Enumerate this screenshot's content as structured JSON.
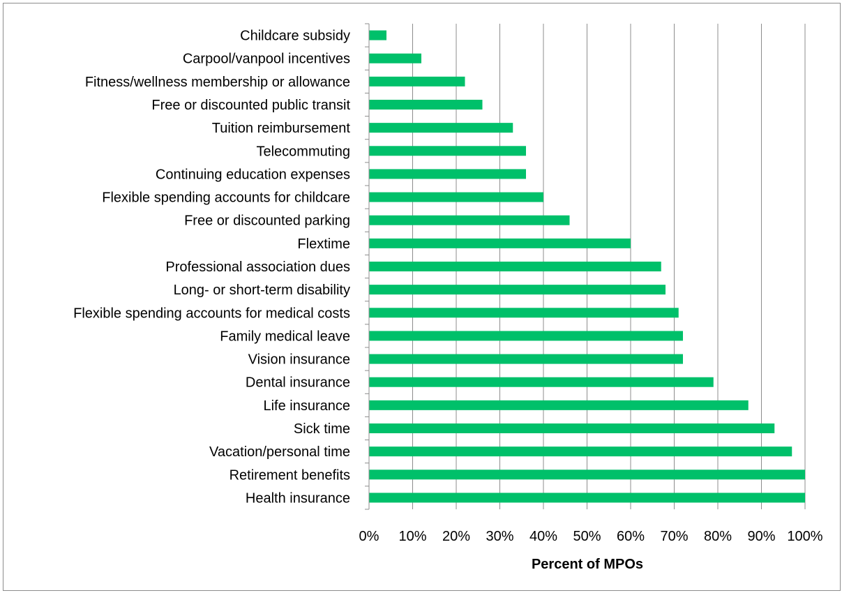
{
  "chart_data": {
    "type": "bar",
    "orientation": "horizontal",
    "title": "",
    "xlabel": "Percent of MPOs",
    "ylabel": "",
    "xlim": [
      0,
      100
    ],
    "x_ticks": [
      "0%",
      "10%",
      "20%",
      "30%",
      "40%",
      "50%",
      "60%",
      "70%",
      "80%",
      "90%",
      "100%"
    ],
    "grid": "vertical",
    "legend": "none",
    "bar_color": "#00c06a",
    "categories": [
      "Childcare subsidy",
      "Carpool/vanpool incentives",
      "Fitness/wellness membership or allowance",
      "Free or discounted public transit",
      "Tuition reimbursement",
      "Telecommuting",
      "Continuing education expenses",
      "Flexible spending accounts for childcare",
      "Free or discounted parking",
      "Flextime",
      "Professional association dues",
      "Long- or short-term disability",
      "Flexible spending accounts for medical costs",
      "Family medical leave",
      "Vision insurance",
      "Dental insurance",
      "Life insurance",
      "Sick time",
      "Vacation/personal time",
      "Retirement benefits",
      "Health insurance"
    ],
    "values": [
      4,
      12,
      22,
      26,
      33,
      36,
      36,
      40,
      46,
      60,
      67,
      68,
      71,
      72,
      72,
      79,
      87,
      93,
      97,
      100,
      100
    ]
  }
}
